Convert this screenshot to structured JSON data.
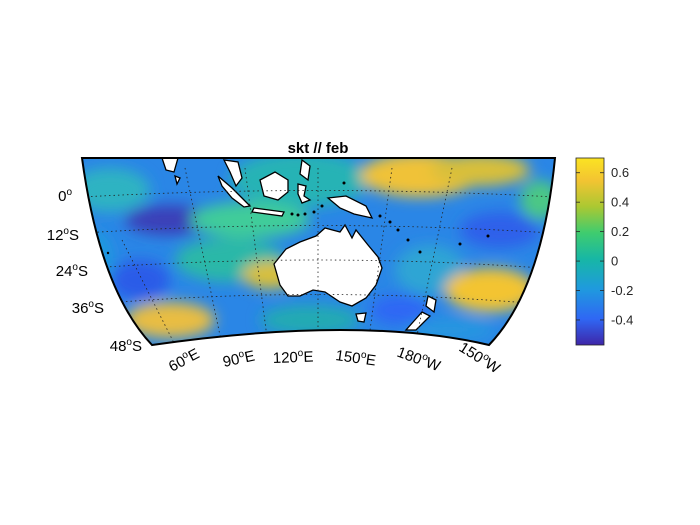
{
  "figure": {
    "title": "skt // feb",
    "lat_labels": [
      {
        "deg": "0",
        "hemi": ""
      },
      {
        "deg": "12",
        "hemi": "S"
      },
      {
        "deg": "24",
        "hemi": "S"
      },
      {
        "deg": "36",
        "hemi": "S"
      },
      {
        "deg": "48",
        "hemi": "S"
      }
    ],
    "lon_labels": [
      {
        "deg": "60",
        "hemi": "E"
      },
      {
        "deg": "90",
        "hemi": "E"
      },
      {
        "deg": "120",
        "hemi": "E"
      },
      {
        "deg": "150",
        "hemi": "E"
      },
      {
        "deg": "180",
        "hemi": "W"
      },
      {
        "deg": "150",
        "hemi": "W"
      }
    ],
    "degree_symbol": "o"
  },
  "colorbar": {
    "ticks": [
      "0.6",
      "0.4",
      "0.2",
      "0",
      "-0.2",
      "-0.4"
    ],
    "range": [
      -0.57,
      0.7
    ],
    "colormap": [
      "#3e26a8",
      "#2f67f4",
      "#1f9ade",
      "#17b7a5",
      "#3fcc6f",
      "#abc832",
      "#f3c432",
      "#fbe322"
    ]
  },
  "chart_data": {
    "type": "heatmap",
    "title": "skt // feb",
    "projection": "conic",
    "lat_range": [
      "6N",
      "50S"
    ],
    "lon_range": [
      "40E",
      "140W"
    ],
    "color_range": [
      -0.57,
      0.7
    ],
    "colorbar_ticks": [
      0.6,
      0.4,
      0.2,
      0,
      -0.2,
      -0.4
    ],
    "lat_ticks": [
      "0",
      "12S",
      "24S",
      "36S",
      "48S"
    ],
    "lon_ticks": [
      "60E",
      "90E",
      "120E",
      "150E",
      "180W",
      "150W"
    ],
    "features": [
      {
        "region": "western Pacific north of New Guinea",
        "value": 0.45
      },
      {
        "region": "Indian Ocean near 12S 60E",
        "value": -0.5
      },
      {
        "region": "central South Pacific near 30S 150W",
        "value": 0.6
      },
      {
        "region": "western Indian Ocean near 40S 55E",
        "value": 0.45
      },
      {
        "region": "eastern Pacific near 10S 160W",
        "value": -0.35
      }
    ]
  }
}
